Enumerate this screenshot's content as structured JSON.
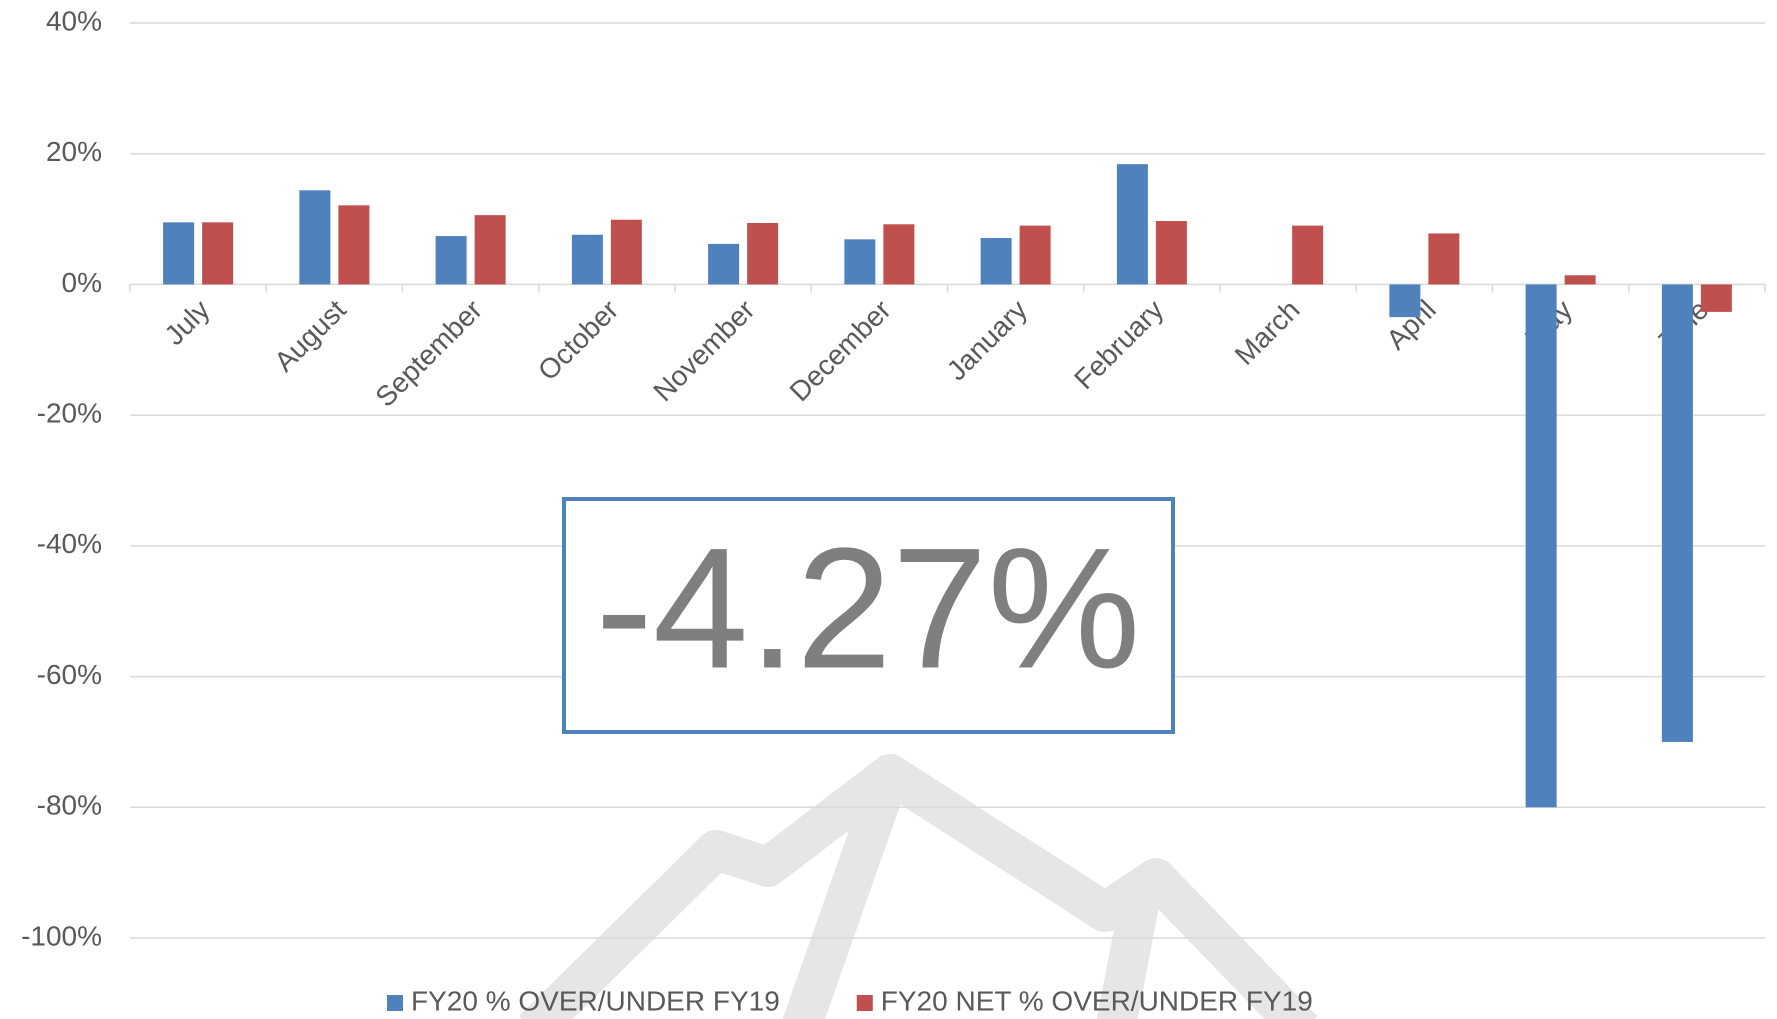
{
  "chart_data": {
    "type": "bar",
    "categories": [
      "July",
      "August",
      "September",
      "October",
      "November",
      "December",
      "January",
      "February",
      "March",
      "April",
      "May",
      "June"
    ],
    "series": [
      {
        "name": "FY20 % OVER/UNDER FY19",
        "color": "#4f81bd",
        "values": [
          9.5,
          14.4,
          7.4,
          7.6,
          6.2,
          6.9,
          7.1,
          18.4,
          null,
          -5.0,
          -80,
          -70
        ]
      },
      {
        "name": "FY20 NET % OVER/UNDER FY19",
        "color": "#c0504d",
        "values": [
          9.5,
          12.1,
          10.6,
          9.9,
          9.4,
          9.2,
          9.0,
          9.7,
          9.0,
          7.8,
          1.4,
          -4.2
        ]
      }
    ],
    "ylim": [
      -100,
      40
    ],
    "yticks": [
      {
        "value": -100,
        "label": "-100%"
      },
      {
        "value": -80,
        "label": "-80%"
      },
      {
        "value": -60,
        "label": "-60%"
      },
      {
        "value": -40,
        "label": "-40%"
      },
      {
        "value": -20,
        "label": "-20%"
      },
      {
        "value": 0,
        "label": "0%"
      },
      {
        "value": 20,
        "label": "20%"
      },
      {
        "value": 40,
        "label": "40%"
      }
    ],
    "grid": true,
    "legend": "bottom",
    "annotation": "-4.27%"
  }
}
